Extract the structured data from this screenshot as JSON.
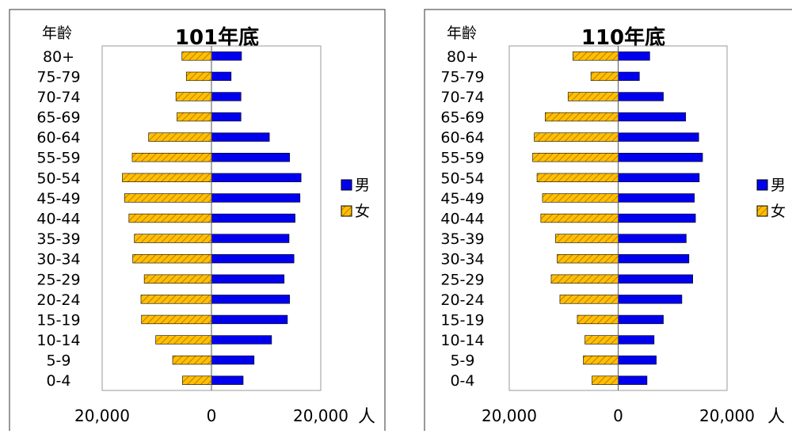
{
  "colors": {
    "male": "#0000ee",
    "female": "#ffc000",
    "female_hatch": "#c07800",
    "outline": "#000000",
    "panel_border": "#333333"
  },
  "chart_data": [
    {
      "type": "bar",
      "orientation": "horizontal",
      "title": "101年底",
      "ylabel": "年齡",
      "xlabel": "人",
      "x_tick_labels": [
        "20,000",
        "0",
        "20,000"
      ],
      "xlim": [
        -20000,
        20000
      ],
      "grid": false,
      "legend": "right",
      "categories": [
        "80+",
        "75-79",
        "70-74",
        "65-69",
        "60-64",
        "55-59",
        "50-54",
        "45-49",
        "40-44",
        "35-39",
        "30-34",
        "25-29",
        "20-24",
        "15-19",
        "10-14",
        "5-9",
        "0-4"
      ],
      "series": [
        {
          "name": "男",
          "values": [
            5500,
            3600,
            5400,
            5400,
            10600,
            14300,
            16400,
            16200,
            15300,
            14200,
            15100,
            13300,
            14300,
            13900,
            11000,
            7800,
            5800
          ]
        },
        {
          "name": "女",
          "values": [
            -5400,
            -4600,
            -6500,
            -6300,
            -11500,
            -14500,
            -16300,
            -15900,
            -15100,
            -14100,
            -14400,
            -12300,
            -12900,
            -12800,
            -10200,
            -7100,
            -5300
          ]
        }
      ]
    },
    {
      "type": "bar",
      "orientation": "horizontal",
      "title": "110年底",
      "ylabel": "年齡",
      "xlabel": "人",
      "x_tick_labels": [
        "20,000",
        "0",
        "20,000"
      ],
      "xlim": [
        -20000,
        20000
      ],
      "grid": false,
      "legend": "right",
      "categories": [
        "80+",
        "75-79",
        "70-74",
        "65-69",
        "60-64",
        "55-59",
        "50-54",
        "45-49",
        "40-44",
        "35-39",
        "30-34",
        "25-29",
        "20-24",
        "15-19",
        "10-14",
        "5-9",
        "0-4"
      ],
      "series": [
        {
          "name": "男",
          "values": [
            5800,
            3900,
            8300,
            12400,
            14800,
            15500,
            14900,
            14000,
            14200,
            12500,
            13000,
            13700,
            11700,
            8300,
            6600,
            7000,
            5300
          ]
        },
        {
          "name": "女",
          "values": [
            -8300,
            -5000,
            -9200,
            -13400,
            -15400,
            -15700,
            -14900,
            -13900,
            -14200,
            -11500,
            -11200,
            -12300,
            -10700,
            -7500,
            -6100,
            -6400,
            -4800
          ]
        }
      ]
    }
  ]
}
